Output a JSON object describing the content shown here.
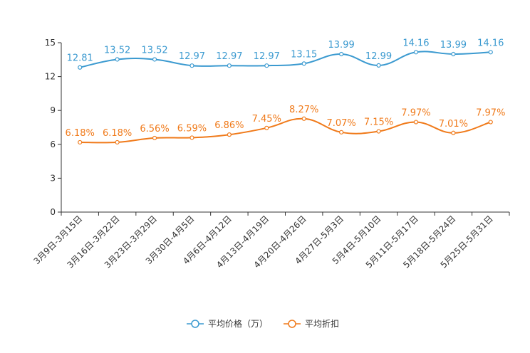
{
  "chart_data": {
    "type": "line",
    "title": "",
    "xlabel": "",
    "ylabel": "",
    "ylim": [
      0,
      15
    ],
    "yticks": [
      0,
      3,
      6,
      9,
      12,
      15
    ],
    "categories": [
      "3月9日-3月15日",
      "3月16日-3月22日",
      "3月23日-3月29日",
      "3月30日-4月5日",
      "4月6日-4月12日",
      "4月13日-4月19日",
      "4月20日-4月26日",
      "4月27日-5月3日",
      "5月4日-5月10日",
      "5月11日-5月17日",
      "5月18日-5月24日",
      "5月25日-5月31日"
    ],
    "series": [
      {
        "name": "平均价格（万）",
        "color": "#3b9ad0",
        "values": [
          12.81,
          13.52,
          13.52,
          12.97,
          12.97,
          12.97,
          13.15,
          13.99,
          12.99,
          14.16,
          13.99,
          14.16
        ],
        "labels": [
          "12.81",
          "13.52",
          "13.52",
          "12.97",
          "12.97",
          "12.97",
          "13.15",
          "13.99",
          "12.99",
          "14.16",
          "13.99",
          "14.16"
        ]
      },
      {
        "name": "平均折扣",
        "color": "#f07a1a",
        "values": [
          6.18,
          6.18,
          6.56,
          6.59,
          6.86,
          7.45,
          8.27,
          7.07,
          7.15,
          7.97,
          7.01,
          7.97
        ],
        "labels": [
          "6.18%",
          "6.18%",
          "6.56%",
          "6.59%",
          "6.86%",
          "7.45%",
          "8.27%",
          "7.07%",
          "7.15%",
          "7.97%",
          "7.01%",
          "7.97%"
        ]
      }
    ],
    "legend_position": "bottom-center",
    "grid": false
  }
}
